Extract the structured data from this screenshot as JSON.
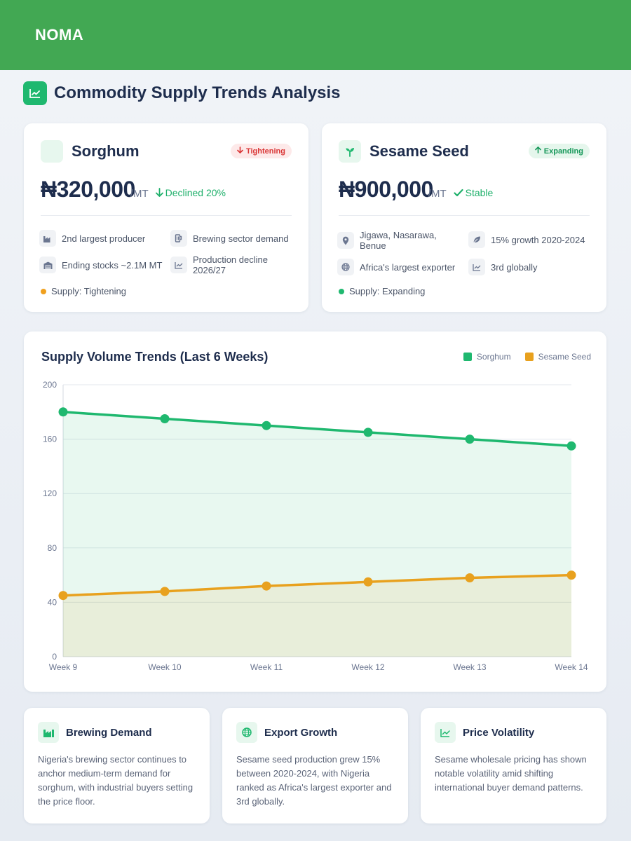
{
  "brand": {
    "logo": "NOMA",
    "header_color": "#42a853",
    "accent": "#1fb86f"
  },
  "page": {
    "title": "Commodity Supply Trends Analysis",
    "title_icon": "trend-chart-icon"
  },
  "commodities": [
    {
      "name": "Sorghum",
      "icon": "grain-icon",
      "badge": "Tightening",
      "badge_icon": "arrow-down-icon",
      "price": "₦320,000",
      "unit": "/MT",
      "change": "Declined 20%",
      "change_icon": "arrow-down-icon",
      "facts": [
        {
          "icon": "factory-icon",
          "text": "2nd largest producer"
        },
        {
          "icon": "beer-mug-icon",
          "text": "Brewing sector demand"
        },
        {
          "icon": "warehouse-icon",
          "text": "Ending stocks ~2.1M MT"
        },
        {
          "icon": "line-chart-icon",
          "text": "Production decline 2026/27"
        }
      ],
      "supply": "Supply: Tightening",
      "supply_color": "#f0a01e"
    },
    {
      "name": "Sesame Seed",
      "icon": "sprout-icon",
      "badge": "Expanding",
      "badge_icon": "arrow-up-icon",
      "price": "₦900,000",
      "unit": "/MT",
      "change": "Stable",
      "change_icon": "check-icon",
      "facts": [
        {
          "icon": "map-pin-icon",
          "text": "Jigawa, Nasarawa, Benue"
        },
        {
          "icon": "leaf-icon",
          "text": "15% growth 2020-2024"
        },
        {
          "icon": "globe-icon",
          "text": "Africa's largest exporter"
        },
        {
          "icon": "line-chart-icon",
          "text": "3rd globally"
        }
      ],
      "supply": "Supply: Expanding",
      "supply_color": "#1fb86f"
    }
  ],
  "chart_data": {
    "type": "area",
    "title": "Supply Volume Trends (Last 6 Weeks)",
    "categories": [
      "Week 9",
      "Week 10",
      "Week 11",
      "Week 12",
      "Week 13",
      "Week 14"
    ],
    "series": [
      {
        "name": "Sorghum",
        "color": "#1fb86f",
        "values": [
          180,
          175,
          170,
          165,
          160,
          155
        ]
      },
      {
        "name": "Sesame Seed",
        "color": "#e8a11e",
        "values": [
          45,
          48,
          52,
          55,
          58,
          60
        ]
      }
    ],
    "ylim": [
      0,
      200
    ],
    "yticks": [
      "0",
      "40",
      "80",
      "120",
      "160",
      "200"
    ],
    "grid": true,
    "legend_position": "top-right"
  },
  "insights": [
    {
      "icon": "factory-icon",
      "title": "Brewing Demand",
      "text": "Nigeria's brewing sector continues to anchor medium-term demand for sorghum, with industrial buyers setting the price floor."
    },
    {
      "icon": "globe-icon",
      "title": "Export Growth",
      "text": "Sesame seed production grew 15% between 2020-2024, with Nigeria ranked as Africa's largest exporter and 3rd globally."
    },
    {
      "icon": "line-chart-icon",
      "title": "Price Volatility",
      "text": "Sesame wholesale pricing has shown notable volatility amid shifting international buyer demand patterns."
    }
  ]
}
